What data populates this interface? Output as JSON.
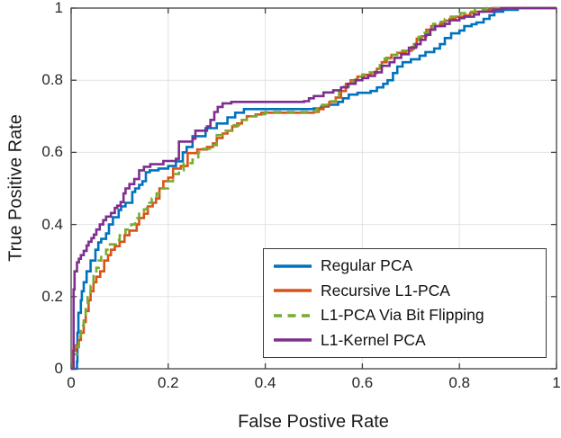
{
  "figure": {
    "background": "#ffffff",
    "axis_color": "#404040",
    "grid_color": "#e2e2e2",
    "tick_label_color": "#262626"
  },
  "chart_data": {
    "type": "line",
    "subtype": "roc-step-curves",
    "title": "",
    "xlabel": "False Postive Rate",
    "ylabel": "True Positive Rate",
    "xlim": [
      0,
      1
    ],
    "ylim": [
      0,
      1
    ],
    "x_ticks": [
      0,
      0.2,
      0.4,
      0.6,
      0.8,
      1
    ],
    "y_ticks": [
      0,
      0.2,
      0.4,
      0.6,
      0.8,
      1
    ],
    "x_tick_labels": [
      "0",
      "0.2",
      "0.4",
      "0.6",
      "0.8",
      "1"
    ],
    "y_tick_labels": [
      "0",
      "0.2",
      "0.4",
      "0.6",
      "0.8",
      "1"
    ],
    "grid": true,
    "legend_position": "inside-lower-right",
    "series": [
      {
        "name": "Regular PCA",
        "color": "#0072BD",
        "style": "solid",
        "points": [
          [
            0,
            0
          ],
          [
            0.012,
            0.02
          ],
          [
            0.013,
            0.1
          ],
          [
            0.015,
            0.155
          ],
          [
            0.02,
            0.19
          ],
          [
            0.022,
            0.215
          ],
          [
            0.026,
            0.24
          ],
          [
            0.032,
            0.27
          ],
          [
            0.04,
            0.3
          ],
          [
            0.05,
            0.33
          ],
          [
            0.056,
            0.35
          ],
          [
            0.062,
            0.36
          ],
          [
            0.072,
            0.375
          ],
          [
            0.078,
            0.4
          ],
          [
            0.086,
            0.42
          ],
          [
            0.098,
            0.44
          ],
          [
            0.103,
            0.45
          ],
          [
            0.112,
            0.46
          ],
          [
            0.126,
            0.49
          ],
          [
            0.132,
            0.5
          ],
          [
            0.14,
            0.51
          ],
          [
            0.147,
            0.52
          ],
          [
            0.154,
            0.545
          ],
          [
            0.162,
            0.55
          ],
          [
            0.18,
            0.555
          ],
          [
            0.2,
            0.562
          ],
          [
            0.216,
            0.575
          ],
          [
            0.23,
            0.6
          ],
          [
            0.238,
            0.615
          ],
          [
            0.25,
            0.645
          ],
          [
            0.277,
            0.667
          ],
          [
            0.3,
            0.68
          ],
          [
            0.322,
            0.697
          ],
          [
            0.338,
            0.71
          ],
          [
            0.356,
            0.72
          ],
          [
            0.5,
            0.722
          ],
          [
            0.515,
            0.727
          ],
          [
            0.53,
            0.732
          ],
          [
            0.55,
            0.74
          ],
          [
            0.56,
            0.75
          ],
          [
            0.572,
            0.76
          ],
          [
            0.59,
            0.765
          ],
          [
            0.617,
            0.77
          ],
          [
            0.63,
            0.78
          ],
          [
            0.643,
            0.79
          ],
          [
            0.652,
            0.8
          ],
          [
            0.663,
            0.82
          ],
          [
            0.672,
            0.838
          ],
          [
            0.683,
            0.85
          ],
          [
            0.7,
            0.858
          ],
          [
            0.718,
            0.868
          ],
          [
            0.73,
            0.878
          ],
          [
            0.748,
            0.888
          ],
          [
            0.76,
            0.9
          ],
          [
            0.77,
            0.917
          ],
          [
            0.783,
            0.93
          ],
          [
            0.8,
            0.938
          ],
          [
            0.81,
            0.95
          ],
          [
            0.825,
            0.955
          ],
          [
            0.835,
            0.96
          ],
          [
            0.85,
            0.97
          ],
          [
            0.862,
            0.98
          ],
          [
            0.872,
            0.99
          ],
          [
            0.89,
            0.995
          ],
          [
            0.92,
            1.0
          ],
          [
            1,
            1
          ]
        ]
      },
      {
        "name": "Recursive L1-PCA",
        "color": "#D95319",
        "style": "solid",
        "points": [
          [
            0,
            0
          ],
          [
            0.004,
            0.05
          ],
          [
            0.01,
            0.065
          ],
          [
            0.016,
            0.08
          ],
          [
            0.02,
            0.1
          ],
          [
            0.026,
            0.13
          ],
          [
            0.03,
            0.16
          ],
          [
            0.036,
            0.19
          ],
          [
            0.04,
            0.215
          ],
          [
            0.046,
            0.24
          ],
          [
            0.052,
            0.255
          ],
          [
            0.06,
            0.27
          ],
          [
            0.068,
            0.3
          ],
          [
            0.076,
            0.315
          ],
          [
            0.082,
            0.33
          ],
          [
            0.09,
            0.34
          ],
          [
            0.1,
            0.352
          ],
          [
            0.11,
            0.37
          ],
          [
            0.12,
            0.383
          ],
          [
            0.135,
            0.4
          ],
          [
            0.14,
            0.418
          ],
          [
            0.15,
            0.43
          ],
          [
            0.158,
            0.45
          ],
          [
            0.168,
            0.46
          ],
          [
            0.175,
            0.472
          ],
          [
            0.182,
            0.5
          ],
          [
            0.19,
            0.52
          ],
          [
            0.2,
            0.53
          ],
          [
            0.21,
            0.555
          ],
          [
            0.226,
            0.562
          ],
          [
            0.24,
            0.598
          ],
          [
            0.26,
            0.608
          ],
          [
            0.28,
            0.615
          ],
          [
            0.292,
            0.625
          ],
          [
            0.3,
            0.64
          ],
          [
            0.312,
            0.652
          ],
          [
            0.322,
            0.66
          ],
          [
            0.332,
            0.672
          ],
          [
            0.342,
            0.68
          ],
          [
            0.352,
            0.69
          ],
          [
            0.362,
            0.7
          ],
          [
            0.38,
            0.705
          ],
          [
            0.392,
            0.71
          ],
          [
            0.5,
            0.712
          ],
          [
            0.51,
            0.72
          ],
          [
            0.52,
            0.73
          ],
          [
            0.532,
            0.74
          ],
          [
            0.545,
            0.752
          ],
          [
            0.556,
            0.77
          ],
          [
            0.566,
            0.79
          ],
          [
            0.576,
            0.8
          ],
          [
            0.59,
            0.81
          ],
          [
            0.603,
            0.815
          ],
          [
            0.617,
            0.82
          ],
          [
            0.63,
            0.832
          ],
          [
            0.64,
            0.85
          ],
          [
            0.65,
            0.862
          ],
          [
            0.66,
            0.87
          ],
          [
            0.672,
            0.876
          ],
          [
            0.69,
            0.882
          ],
          [
            0.702,
            0.892
          ],
          [
            0.712,
            0.915
          ],
          [
            0.722,
            0.922
          ],
          [
            0.732,
            0.94
          ],
          [
            0.742,
            0.95
          ],
          [
            0.76,
            0.956
          ],
          [
            0.77,
            0.965
          ],
          [
            0.78,
            0.97
          ],
          [
            0.792,
            0.976
          ],
          [
            0.81,
            0.98
          ],
          [
            0.822,
            0.986
          ],
          [
            0.832,
            0.99
          ],
          [
            0.85,
            0.995
          ],
          [
            0.868,
            1.0
          ],
          [
            1,
            1
          ]
        ]
      },
      {
        "name": "L1-PCA Via Bit Flipping",
        "color": "#77AC30",
        "style": "dashed",
        "points": [
          [
            0,
            0
          ],
          [
            0.004,
            0.04
          ],
          [
            0.012,
            0.06
          ],
          [
            0.016,
            0.09
          ],
          [
            0.02,
            0.12
          ],
          [
            0.026,
            0.15
          ],
          [
            0.03,
            0.18
          ],
          [
            0.034,
            0.205
          ],
          [
            0.04,
            0.23
          ],
          [
            0.046,
            0.26
          ],
          [
            0.052,
            0.28
          ],
          [
            0.057,
            0.3
          ],
          [
            0.062,
            0.31
          ],
          [
            0.072,
            0.33
          ],
          [
            0.08,
            0.345
          ],
          [
            0.092,
            0.357
          ],
          [
            0.1,
            0.37
          ],
          [
            0.112,
            0.386
          ],
          [
            0.124,
            0.4
          ],
          [
            0.132,
            0.418
          ],
          [
            0.14,
            0.43
          ],
          [
            0.15,
            0.442
          ],
          [
            0.156,
            0.46
          ],
          [
            0.166,
            0.472
          ],
          [
            0.176,
            0.486
          ],
          [
            0.186,
            0.5
          ],
          [
            0.2,
            0.52
          ],
          [
            0.21,
            0.54
          ],
          [
            0.222,
            0.55
          ],
          [
            0.232,
            0.57
          ],
          [
            0.25,
            0.58
          ],
          [
            0.262,
            0.6
          ],
          [
            0.272,
            0.61
          ],
          [
            0.286,
            0.62
          ],
          [
            0.3,
            0.648
          ],
          [
            0.316,
            0.66
          ],
          [
            0.33,
            0.675
          ],
          [
            0.346,
            0.69
          ],
          [
            0.362,
            0.7
          ],
          [
            0.382,
            0.706
          ],
          [
            0.4,
            0.712
          ],
          [
            0.495,
            0.714
          ],
          [
            0.507,
            0.722
          ],
          [
            0.517,
            0.732
          ],
          [
            0.53,
            0.742
          ],
          [
            0.545,
            0.756
          ],
          [
            0.552,
            0.77
          ],
          [
            0.562,
            0.782
          ],
          [
            0.572,
            0.796
          ],
          [
            0.586,
            0.81
          ],
          [
            0.6,
            0.816
          ],
          [
            0.612,
            0.822
          ],
          [
            0.626,
            0.832
          ],
          [
            0.636,
            0.842
          ],
          [
            0.646,
            0.86
          ],
          [
            0.657,
            0.87
          ],
          [
            0.672,
            0.876
          ],
          [
            0.682,
            0.882
          ],
          [
            0.696,
            0.886
          ],
          [
            0.706,
            0.9
          ],
          [
            0.716,
            0.92
          ],
          [
            0.726,
            0.932
          ],
          [
            0.736,
            0.946
          ],
          [
            0.746,
            0.956
          ],
          [
            0.757,
            0.962
          ],
          [
            0.77,
            0.97
          ],
          [
            0.782,
            0.976
          ],
          [
            0.792,
            0.98
          ],
          [
            0.802,
            0.986
          ],
          [
            0.816,
            0.99
          ],
          [
            0.832,
            0.996
          ],
          [
            0.856,
            1.0
          ],
          [
            1,
            1
          ]
        ]
      },
      {
        "name": "L1-Kernel PCA",
        "color": "#7E2F8E",
        "style": "solid",
        "points": [
          [
            0,
            0
          ],
          [
            0.005,
            0.1
          ],
          [
            0.005,
            0.22
          ],
          [
            0.007,
            0.27
          ],
          [
            0.012,
            0.295
          ],
          [
            0.016,
            0.305
          ],
          [
            0.02,
            0.315
          ],
          [
            0.026,
            0.327
          ],
          [
            0.032,
            0.342
          ],
          [
            0.036,
            0.352
          ],
          [
            0.042,
            0.362
          ],
          [
            0.047,
            0.372
          ],
          [
            0.052,
            0.386
          ],
          [
            0.059,
            0.4
          ],
          [
            0.066,
            0.412
          ],
          [
            0.072,
            0.422
          ],
          [
            0.082,
            0.432
          ],
          [
            0.09,
            0.446
          ],
          [
            0.095,
            0.452
          ],
          [
            0.102,
            0.462
          ],
          [
            0.108,
            0.486
          ],
          [
            0.112,
            0.5
          ],
          [
            0.12,
            0.512
          ],
          [
            0.13,
            0.526
          ],
          [
            0.14,
            0.55
          ],
          [
            0.15,
            0.56
          ],
          [
            0.163,
            0.567
          ],
          [
            0.19,
            0.576
          ],
          [
            0.216,
            0.582
          ],
          [
            0.222,
            0.63
          ],
          [
            0.25,
            0.638
          ],
          [
            0.256,
            0.66
          ],
          [
            0.28,
            0.672
          ],
          [
            0.287,
            0.69
          ],
          [
            0.295,
            0.712
          ],
          [
            0.302,
            0.726
          ],
          [
            0.312,
            0.736
          ],
          [
            0.33,
            0.74
          ],
          [
            0.48,
            0.742
          ],
          [
            0.49,
            0.75
          ],
          [
            0.5,
            0.756
          ],
          [
            0.52,
            0.766
          ],
          [
            0.54,
            0.772
          ],
          [
            0.556,
            0.78
          ],
          [
            0.57,
            0.79
          ],
          [
            0.586,
            0.8
          ],
          [
            0.6,
            0.806
          ],
          [
            0.612,
            0.812
          ],
          [
            0.626,
            0.822
          ],
          [
            0.64,
            0.84
          ],
          [
            0.656,
            0.85
          ],
          [
            0.666,
            0.862
          ],
          [
            0.68,
            0.872
          ],
          [
            0.696,
            0.89
          ],
          [
            0.71,
            0.9
          ],
          [
            0.72,
            0.912
          ],
          [
            0.73,
            0.926
          ],
          [
            0.74,
            0.94
          ],
          [
            0.75,
            0.95
          ],
          [
            0.77,
            0.956
          ],
          [
            0.78,
            0.966
          ],
          [
            0.8,
            0.972
          ],
          [
            0.81,
            0.976
          ],
          [
            0.83,
            0.982
          ],
          [
            0.84,
            0.99
          ],
          [
            0.87,
            0.996
          ],
          [
            0.886,
            1.0
          ],
          [
            1,
            1
          ]
        ]
      }
    ]
  },
  "legend": {
    "items": [
      {
        "label": "Regular PCA"
      },
      {
        "label": "Recursive L1-PCA"
      },
      {
        "label": "L1-PCA Via Bit Flipping"
      },
      {
        "label": "L1-Kernel PCA"
      }
    ]
  }
}
